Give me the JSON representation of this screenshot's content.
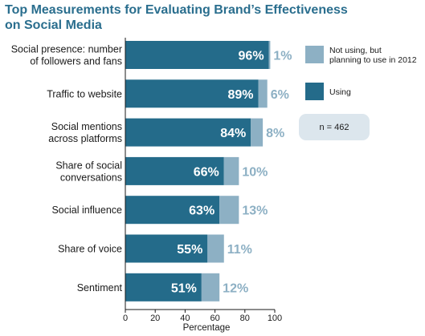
{
  "title": [
    "Top Measurements for Evaluating Brand’s Effectiveness",
    "on Social Media"
  ],
  "chart_data": {
    "type": "bar",
    "orientation": "horizontal",
    "stacked": true,
    "categories": [
      [
        "Social presence: number",
        "of followers and fans"
      ],
      [
        "Traffic to website"
      ],
      [
        "Social mentions",
        "across platforms"
      ],
      [
        "Share of social",
        "conversations"
      ],
      [
        "Social influence"
      ],
      [
        "Share of voice"
      ],
      [
        "Sentiment"
      ]
    ],
    "series": [
      {
        "name": "Using",
        "color": "#246b8a",
        "labels": [
          "96%",
          "89%",
          "84%",
          "66%",
          "63%",
          "55%",
          "51%"
        ],
        "values": [
          96,
          89,
          84,
          66,
          63,
          55,
          51
        ]
      },
      {
        "name": "Not using, but planning to use in 2012",
        "legend_lines": [
          "Not using, but",
          "planning to use in 2012"
        ],
        "color": "#8db0c4",
        "labels": [
          "1%",
          "6%",
          "8%",
          "10%",
          "13%",
          "11%",
          "12%"
        ],
        "values": [
          1,
          6,
          8,
          10,
          13,
          11,
          12
        ]
      }
    ],
    "xlabel": "Percentage",
    "xlim": [
      0,
      100
    ],
    "xticks": [
      0,
      20,
      40,
      60,
      80,
      100
    ],
    "grid": false,
    "legend": "right",
    "annotations": [
      "n = 462"
    ]
  }
}
